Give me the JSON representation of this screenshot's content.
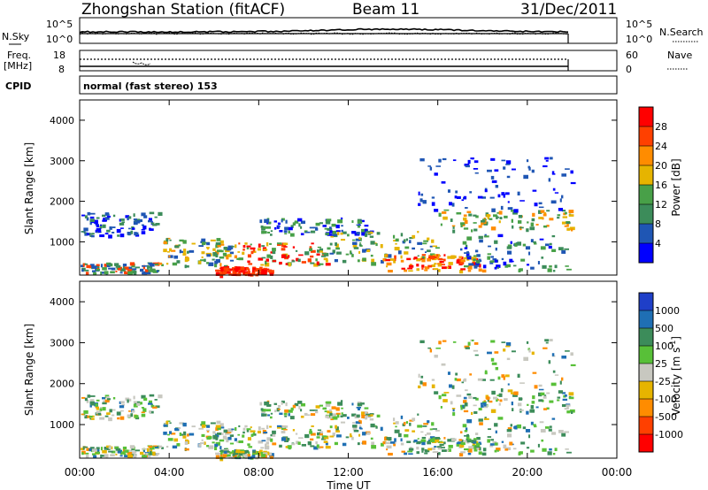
{
  "header": {
    "station": "Zhongshan Station (fitACF)",
    "beam": "Beam 11",
    "date": "31/Dec/2011"
  },
  "noise_panel": {
    "left_label": "N.Sky",
    "right_label": "N.Search",
    "left_ticks": [
      "10^5",
      "10^0"
    ],
    "right_ticks": [
      "10^5",
      "10^0"
    ]
  },
  "freq_panel": {
    "left_label_1": "Freq.",
    "left_label_2": "[MHz]",
    "left_ticks": [
      "18",
      "8"
    ],
    "right_label": "Nave",
    "right_ticks": [
      "60",
      "0"
    ]
  },
  "cpid": {
    "label": "CPID",
    "value": "normal (fast stereo) 153"
  },
  "chart_data": [
    {
      "type": "heatmap",
      "title": "",
      "ylabel": "Slant Range [km]",
      "xlabel": "",
      "xlim": [
        "00:00",
        "24:00"
      ],
      "ylim": [
        180,
        4500
      ],
      "yticks": [
        "1000",
        "2000",
        "3000",
        "4000"
      ],
      "colorbar": {
        "label": "Power [dB]",
        "ticks": [
          "4",
          "8",
          "12",
          "16",
          "20",
          "24",
          "28"
        ],
        "range": [
          0,
          30
        ],
        "colors": [
          "#0000ff",
          "#1f56b4",
          "#3c8c5a",
          "#48a048",
          "#e6b400",
          "#ff8c00",
          "#ff4000",
          "#ff0000"
        ]
      }
    },
    {
      "type": "heatmap",
      "title": "",
      "ylabel": "Slant Range [km]",
      "xlabel": "Time UT",
      "xlim": [
        "00:00",
        "24:00"
      ],
      "ylim": [
        180,
        4500
      ],
      "yticks": [
        "1000",
        "2000",
        "3000",
        "4000"
      ],
      "xticks": [
        "00:00",
        "04:00",
        "08:00",
        "12:00",
        "16:00",
        "20:00",
        "00:00"
      ],
      "colorbar": {
        "label": "Velocity [m s",
        "label_sup": "-1",
        "label_end": "]",
        "ticks": [
          "1000",
          "500",
          "100",
          "25",
          "-25",
          "-100",
          "-500",
          "-1000"
        ],
        "colors": [
          "#1f3fc8",
          "#1f6fb4",
          "#3c8c5a",
          "#58c038",
          "#c8c8c0",
          "#e6b400",
          "#ff8c00",
          "#ff4000",
          "#ff0000"
        ]
      }
    }
  ]
}
